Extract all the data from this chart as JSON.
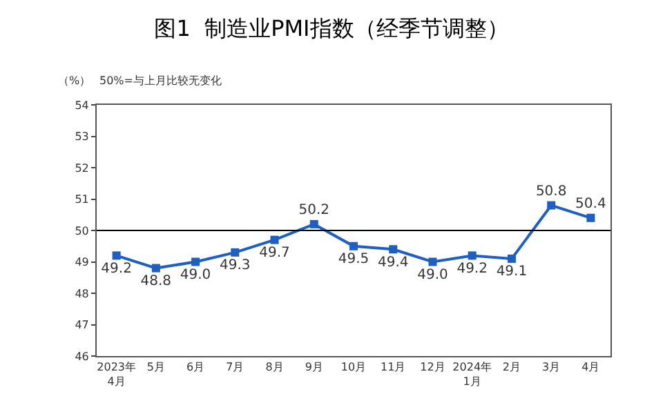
{
  "chart_data": {
    "type": "line",
    "title": "图1  制造业PMI指数（经季节调整）",
    "ylabel": "（%）",
    "annotations": [
      "50%=与上月比较无变化"
    ],
    "categories": [
      "2023年\n4月",
      "5月",
      "6月",
      "7月",
      "8月",
      "9月",
      "10月",
      "11月",
      "12月",
      "2024年\n1月",
      "2月",
      "3月",
      "4月"
    ],
    "series": [
      {
        "color": "#1f5fbf",
        "values": [
          49.2,
          48.8,
          49.0,
          49.3,
          49.7,
          50.2,
          49.5,
          49.4,
          49.0,
          49.2,
          49.1,
          50.8,
          50.4
        ],
        "value_labels": [
          "49.2",
          "48.8",
          "49.0",
          "49.3",
          "49.7",
          "50.2",
          "49.5",
          "49.4",
          "49.0",
          "49.2",
          "49.1",
          "50.8",
          "50.4"
        ]
      }
    ],
    "ylim": [
      46,
      54
    ],
    "yticks": [
      46,
      47,
      48,
      49,
      50,
      51,
      52,
      53,
      54
    ],
    "ref_lines": [
      {
        "axis": "y",
        "value": 50,
        "color": "#000000"
      }
    ],
    "marker": "square",
    "line_style": "solid"
  }
}
